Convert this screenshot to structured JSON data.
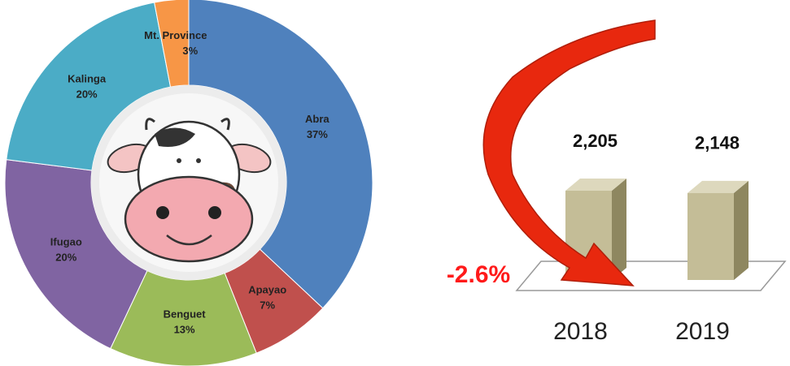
{
  "chart_data": [
    {
      "type": "donut",
      "categories": [
        "Abra",
        "Apayao",
        "Benguet",
        "Ifugao",
        "Kalinga",
        "Mt. Province"
      ],
      "values": [
        37,
        7,
        13,
        20,
        20,
        3
      ],
      "value_labels": [
        "37%",
        "7%",
        "13%",
        "20%",
        "20%",
        "3%"
      ],
      "colors": [
        "#4f81bd",
        "#c0504d",
        "#9bbb59",
        "#8064a2",
        "#4bacc6",
        "#f79646"
      ]
    },
    {
      "type": "bar3d",
      "categories": [
        "2018",
        "2019"
      ],
      "values": [
        2205,
        2148
      ],
      "value_labels": [
        "2,205",
        "2,148"
      ],
      "color": "#c4bd97",
      "annotation": "-2.6%"
    }
  ]
}
